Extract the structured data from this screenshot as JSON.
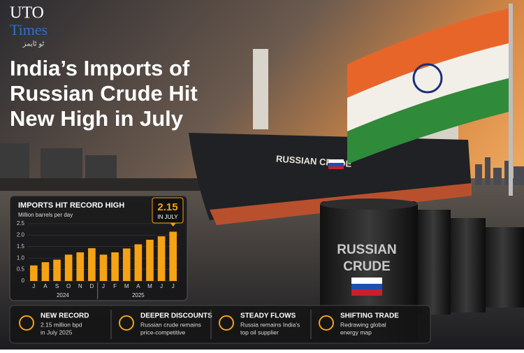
{
  "logo": {
    "name": "UTO",
    "sub": "Times",
    "urdu": "ٹو ٹایمز"
  },
  "headline": [
    "India’s Imports of",
    "Russian Crude Hit",
    "New High in July"
  ],
  "ship_label": "RUSSIAN CRUDE",
  "barrel_label": [
    "RUSSIAN",
    "CRUDE"
  ],
  "chart_data": {
    "type": "bar",
    "title": "IMPORTS HIT RECORD HIGH",
    "subtitle": "Million barrels per day",
    "categories": [
      "J",
      "A",
      "S",
      "O",
      "N",
      "D",
      "J",
      "F",
      "M",
      "A",
      "M",
      "J",
      "J"
    ],
    "year_labels": [
      "2024",
      "2025"
    ],
    "values": [
      0.68,
      0.82,
      0.93,
      1.15,
      1.25,
      1.43,
      1.15,
      1.25,
      1.42,
      1.6,
      1.8,
      1.95,
      2.15
    ],
    "color": "#f5a214",
    "annotation": "IN JULY",
    "ylim": [
      0,
      2.5
    ],
    "yticks": [
      0,
      0.5,
      {
        "value": 1,
        "label": "1.0"
      },
      1.5,
      {
        "value": 2,
        "label": "2.0"
      },
      2.5
    ]
  },
  "footer": [
    {
      "title": "NEW RECORD",
      "text": [
        "2.15 million bpd",
        "in July 2025"
      ]
    },
    {
      "title": "DEEPER DISCOUNTS",
      "text": [
        "Russian crude remains",
        "price-competitive"
      ]
    },
    {
      "title": "STEADY FLOWS",
      "text": [
        "Russia remains India's",
        "top oil supplier"
      ]
    },
    {
      "title": "SHIFTING TRADE",
      "text": [
        "Redrawing global",
        "energy map"
      ]
    }
  ]
}
